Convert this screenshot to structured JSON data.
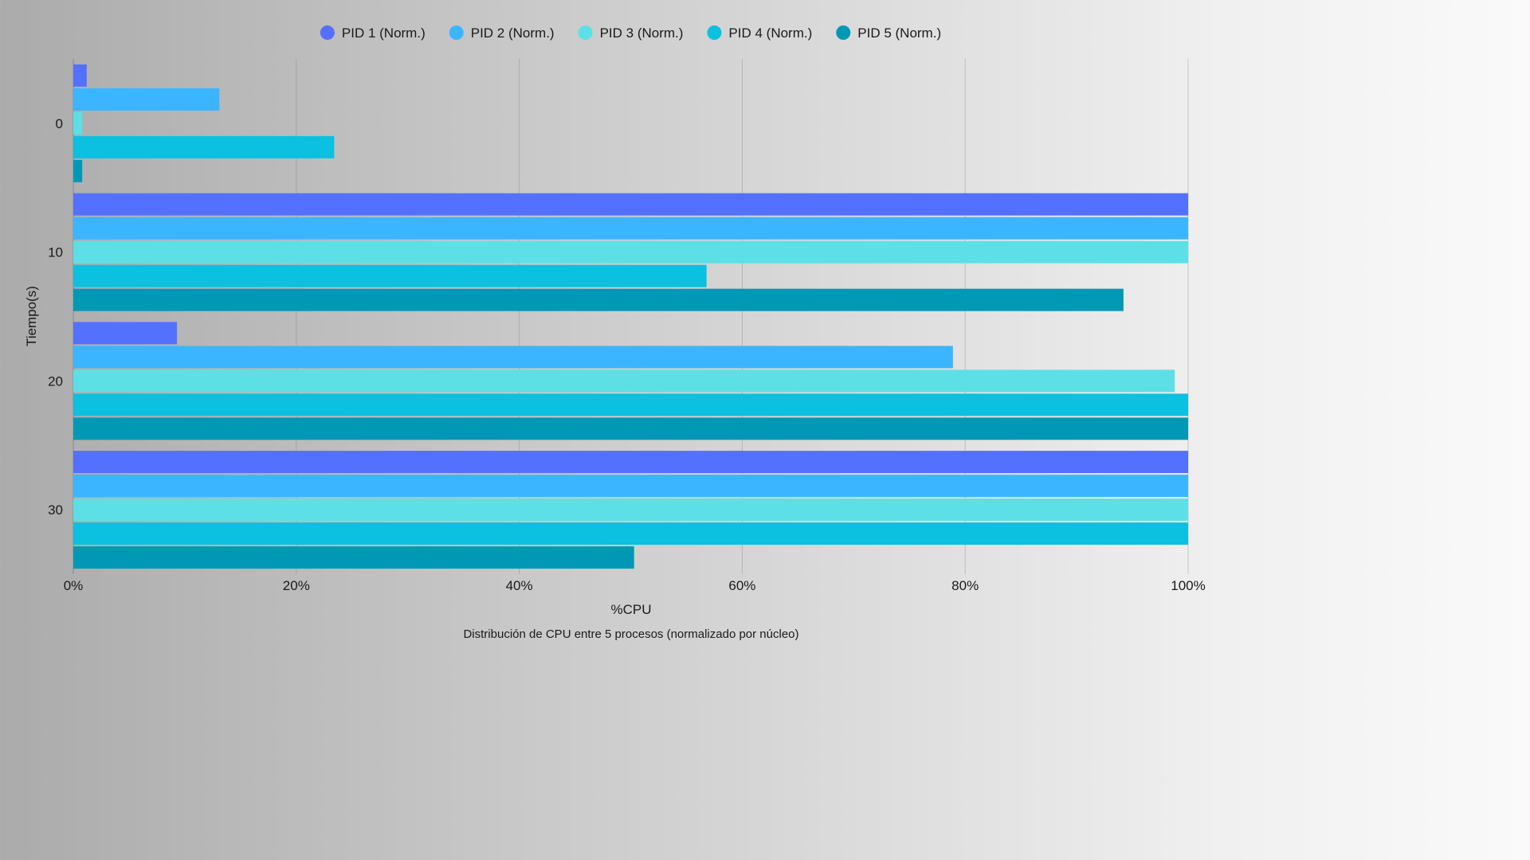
{
  "chart_data": {
    "type": "bar",
    "orientation": "horizontal",
    "categories": [
      "0",
      "10",
      "20",
      "30"
    ],
    "series": [
      {
        "name": "PID 1 (Norm.)",
        "color": "#5470FF",
        "values": [
          1.2,
          100,
          9.3,
          100
        ]
      },
      {
        "name": "PID 2 (Norm.)",
        "color": "#3BB5FF",
        "values": [
          13.1,
          100,
          78.9,
          100
        ]
      },
      {
        "name": "PID 3 (Norm.)",
        "color": "#5CE0E6",
        "values": [
          0.8,
          100,
          98.8,
          100
        ]
      },
      {
        "name": "PID 4 (Norm.)",
        "color": "#0CC0DF",
        "values": [
          23.4,
          56.8,
          100,
          100
        ]
      },
      {
        "name": "PID 5 (Norm.)",
        "color": "#0098B4",
        "values": [
          0.8,
          94.2,
          100,
          50.3
        ]
      }
    ],
    "xlim": [
      0,
      100
    ],
    "xticks": [
      "0%",
      "20%",
      "40%",
      "60%",
      "80%",
      "100%"
    ],
    "xlabel": "%CPU",
    "ylabel": "Tiempo(s)",
    "caption": "Distribución de CPU entre 5 procesos (normalizado por núcleo)",
    "grid": true,
    "legend_position": "top-center"
  }
}
